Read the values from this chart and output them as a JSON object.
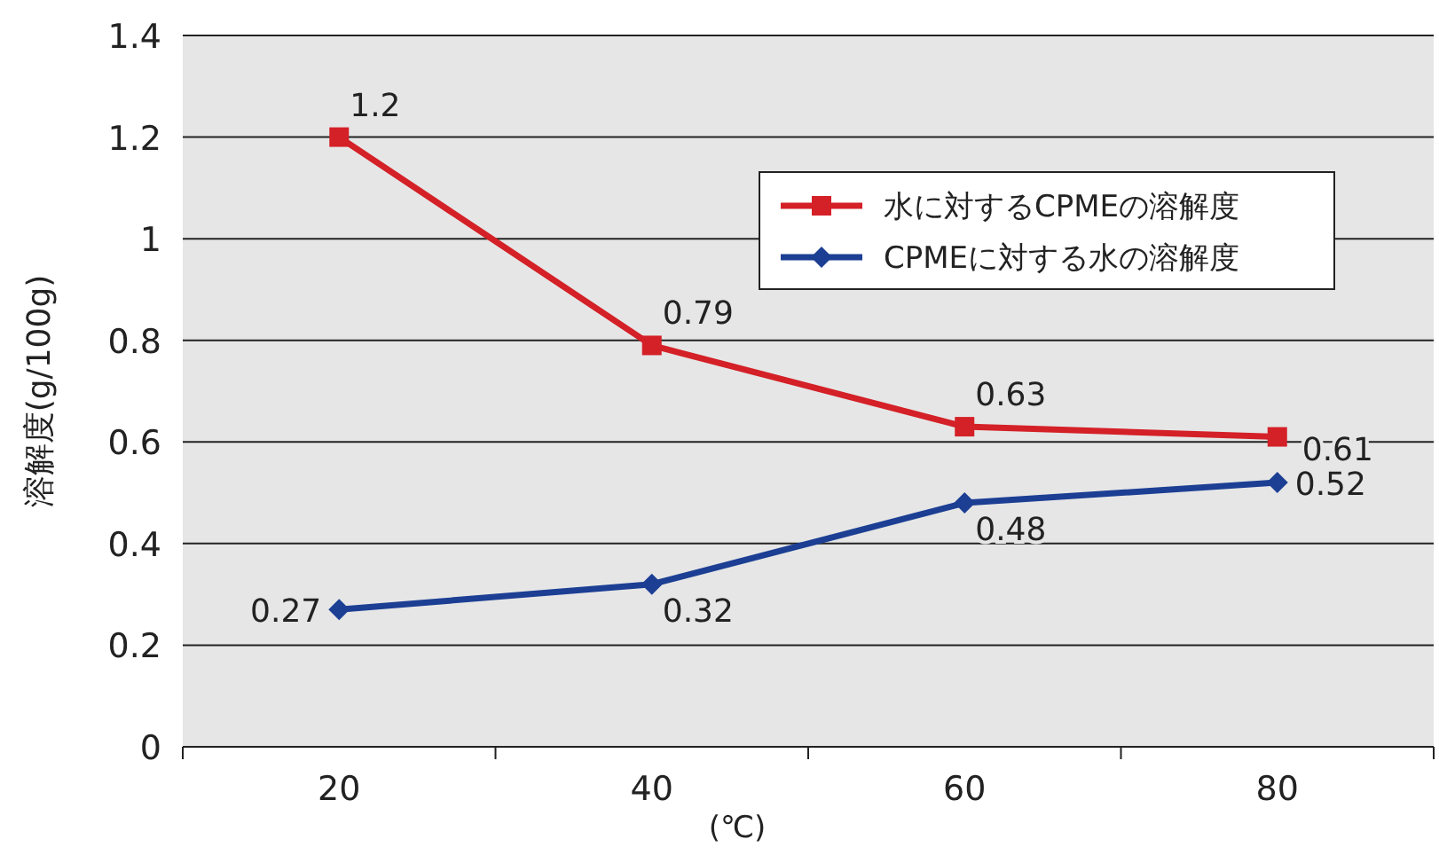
{
  "chart_data": {
    "type": "line",
    "xlabel": "(℃)",
    "ylabel": "溶解度(g/100g)",
    "categories": [
      "20",
      "40",
      "60",
      "80"
    ],
    "series": [
      {
        "name": "水に対するCPMEの溶解度",
        "color": "#d42027",
        "marker": "square",
        "values": [
          1.2,
          0.79,
          0.63,
          0.61
        ]
      },
      {
        "name": "CPMEに対する水の溶解度",
        "color": "#1c3f94",
        "marker": "diamond",
        "values": [
          0.27,
          0.32,
          0.48,
          0.52
        ]
      }
    ],
    "ylim": [
      0,
      1.4
    ],
    "yticks": [
      0,
      0.2,
      0.4,
      0.6,
      0.8,
      1,
      1.2,
      1.4
    ],
    "grid": "y",
    "legend": "right",
    "data_labels": true
  }
}
